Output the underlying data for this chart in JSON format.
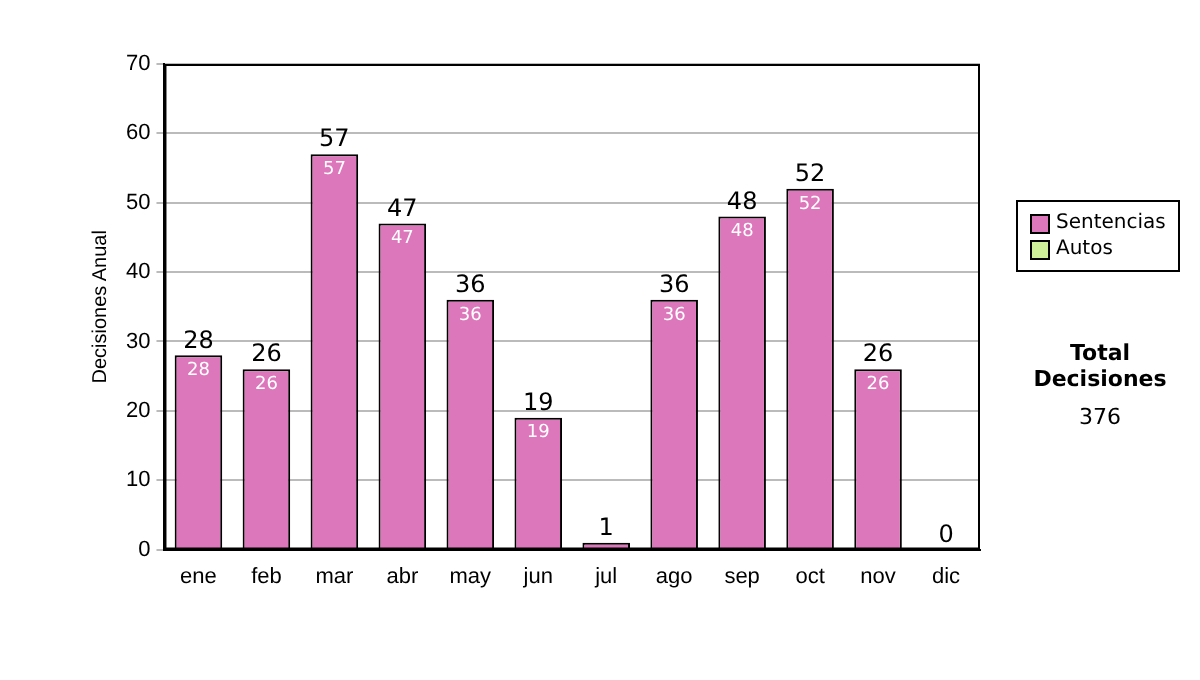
{
  "chart_data": {
    "type": "bar",
    "ylabel": "Decisiones Anual",
    "stacked": true,
    "categories": [
      "ene",
      "feb",
      "mar",
      "abr",
      "may",
      "jun",
      "jul",
      "ago",
      "sep",
      "oct",
      "nov",
      "dic"
    ],
    "series": [
      {
        "name": "Sentencias",
        "color": "#dd77bb",
        "values": [
          28,
          26,
          57,
          47,
          36,
          19,
          1,
          36,
          48,
          52,
          26,
          0
        ],
        "value_labels": [
          "28",
          "26",
          "57",
          "47",
          "36",
          "19",
          null,
          "36",
          "48",
          "52",
          "26",
          null
        ]
      },
      {
        "name": "Autos",
        "color": "#ccee99",
        "values": [
          0,
          0,
          0,
          0,
          0,
          0,
          0,
          0,
          0,
          0,
          0,
          0
        ]
      }
    ],
    "totals": [
      "28",
      "26",
      "57",
      "47",
      "36",
      "19",
      "1",
      "36",
      "48",
      "52",
      "26",
      "0"
    ],
    "ylim": [
      0,
      70
    ],
    "yticks": [
      0,
      10,
      20,
      30,
      40,
      50,
      60,
      70
    ],
    "grid": "y",
    "legend": "right",
    "annotations": [
      "Total Decisiones",
      "376"
    ]
  }
}
